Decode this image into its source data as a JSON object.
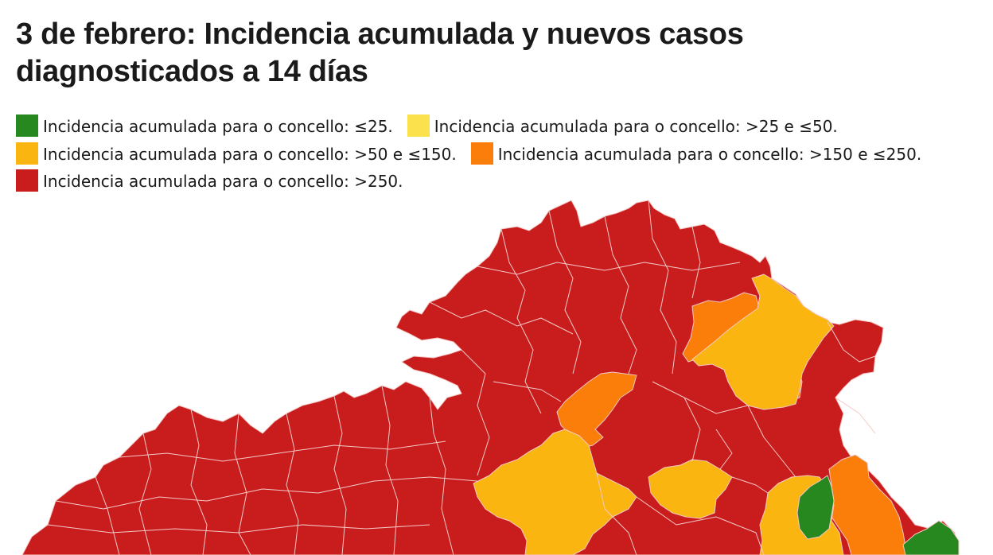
{
  "title": "3 de febrero: Incidencia acumulada y nuevos casos diagnosticados a 14 días",
  "legend": [
    {
      "label": "Incidencia acumulada para o concello: ≤25.",
      "color": "#27881f"
    },
    {
      "label": "Incidencia acumulada para o concello: >25 e ≤50.",
      "color": "#fbe14b"
    },
    {
      "label": "Incidencia acumulada para o concello: >50 e ≤150.",
      "color": "#fbb511"
    },
    {
      "label": "Incidencia acumulada para o concello: >150 e ≤250.",
      "color": "#fb7d0a"
    },
    {
      "label": "Incidencia acumulada para o concello: >250.",
      "color": "#c91d1d"
    }
  ],
  "map": {
    "region": "Galicia",
    "unit": "concello",
    "categories": [
      "≤25",
      ">25 e ≤50",
      ">50 e ≤150",
      ">150 e ≤250",
      ">250"
    ],
    "dominant_category": ">250"
  }
}
